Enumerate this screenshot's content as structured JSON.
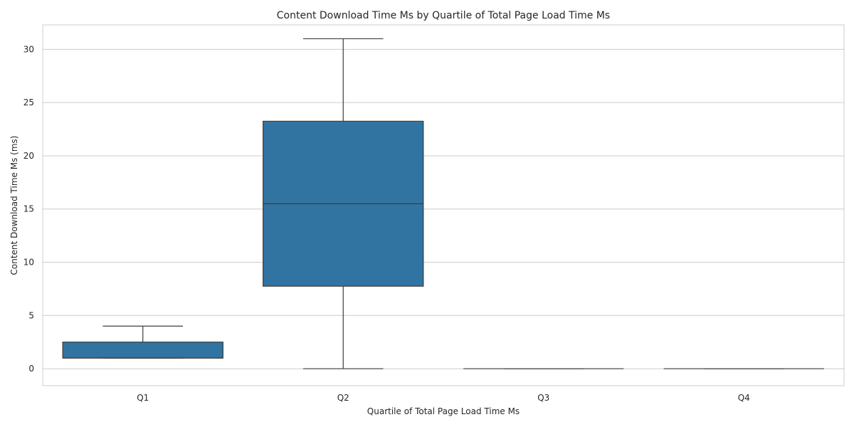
{
  "chart_data": {
    "type": "box",
    "title": "Content Download Time Ms by Quartile of Total Page Load Time Ms",
    "xlabel": "Quartile of Total Page Load Time Ms",
    "ylabel": "Content Download Time Ms (ms)",
    "categories": [
      "Q1",
      "Q2",
      "Q3",
      "Q4"
    ],
    "ylim": [
      -1.6,
      32.3
    ],
    "yticks": [
      0,
      5,
      10,
      15,
      20,
      25,
      30
    ],
    "grid": true,
    "box_color": "#3274a1",
    "line_color": "#3d3d3d",
    "grid_color": "#cccccc",
    "boxes": [
      {
        "category": "Q1",
        "whisker_low": 1,
        "q1": 1,
        "median": 1,
        "q3": 2.5,
        "whisker_high": 4
      },
      {
        "category": "Q2",
        "whisker_low": 0,
        "q1": 7.75,
        "median": 15.5,
        "q3": 23.25,
        "whisker_high": 31
      },
      {
        "category": "Q3",
        "whisker_low": 0,
        "q1": 0,
        "median": 0,
        "q3": 0,
        "whisker_high": 0
      },
      {
        "category": "Q4",
        "whisker_low": 0,
        "q1": 0,
        "median": 0,
        "q3": 0,
        "whisker_high": 0
      }
    ]
  }
}
